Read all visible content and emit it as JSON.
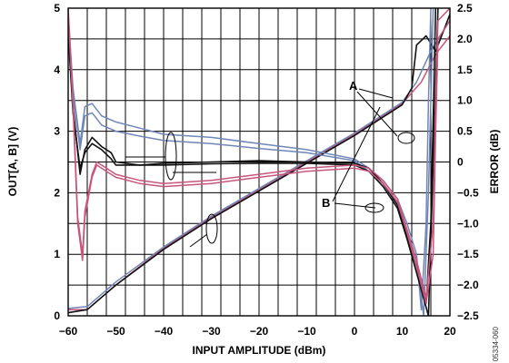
{
  "chart_data": {
    "type": "line",
    "xlabel": "INPUT AMPLITUDE (dBm)",
    "ylabel": "OUT[A, B] (V)",
    "y2label": "ERROR (dB)",
    "xlim": [
      -60,
      20
    ],
    "ylim": [
      0,
      5
    ],
    "y2lim": [
      -2.5,
      2.5
    ],
    "x_ticks": [
      "−60",
      "−50",
      "−40",
      "−30",
      "−20",
      "−10",
      "0",
      "10",
      "20"
    ],
    "y_ticks": [
      "0",
      "1",
      "2",
      "3",
      "4",
      "5"
    ],
    "y2_ticks": [
      "−2.5",
      "−2.0",
      "−1.5",
      "−1.0",
      "−0.5",
      "0",
      "0.5",
      "1.0",
      "1.5",
      "2.0",
      "2.5"
    ],
    "grid": true,
    "annotations": [
      "A",
      "B"
    ],
    "figure_code": "05334-060",
    "colors": {
      "black": "#111111",
      "blue": "#6f86b8",
      "pink": "#c8557d"
    },
    "series": [
      {
        "color": "pink",
        "axis": "left",
        "points": [
          [
            -60,
            0.1
          ],
          [
            -56,
            0.1
          ],
          [
            -50,
            0.5
          ],
          [
            -40,
            1.1
          ],
          [
            -30,
            1.6
          ],
          [
            -20,
            2.05
          ],
          [
            -10,
            2.5
          ],
          [
            0,
            2.95
          ],
          [
            10,
            3.45
          ],
          [
            14,
            3.8
          ],
          [
            17,
            4.25
          ],
          [
            20,
            4.55
          ]
        ]
      },
      {
        "color": "blue",
        "axis": "left",
        "points": [
          [
            -60,
            0.12
          ],
          [
            -56,
            0.15
          ],
          [
            -50,
            0.55
          ],
          [
            -40,
            1.12
          ],
          [
            -30,
            1.62
          ],
          [
            -20,
            2.07
          ],
          [
            -10,
            2.52
          ],
          [
            0,
            2.97
          ],
          [
            10,
            3.47
          ],
          [
            13,
            3.8
          ],
          [
            16,
            4.3
          ],
          [
            20,
            4.8
          ]
        ]
      },
      {
        "color": "black",
        "axis": "left",
        "points": [
          [
            -60,
            0.05
          ],
          [
            -56,
            0.1
          ],
          [
            -50,
            0.5
          ],
          [
            -40,
            1.08
          ],
          [
            -30,
            1.58
          ],
          [
            -20,
            2.03
          ],
          [
            -10,
            2.48
          ],
          [
            0,
            2.93
          ],
          [
            10,
            3.43
          ],
          [
            12,
            3.7
          ],
          [
            13,
            4.4
          ],
          [
            15,
            4.55
          ],
          [
            17,
            4.3
          ],
          [
            20,
            4.9
          ]
        ]
      },
      {
        "color": "blue",
        "axis": "right",
        "points": [
          [
            -60,
            2.4
          ],
          [
            -59,
            1.2
          ],
          [
            -57.5,
            0.3
          ],
          [
            -56.5,
            0.9
          ],
          [
            -55,
            0.95
          ],
          [
            -53,
            0.75
          ],
          [
            -50,
            0.65
          ],
          [
            -45,
            0.55
          ],
          [
            -40,
            0.45
          ],
          [
            -30,
            0.4
          ],
          [
            -20,
            0.3
          ],
          [
            -10,
            0.2
          ],
          [
            0,
            0.05
          ],
          [
            3,
            -0.1
          ],
          [
            6,
            -0.3
          ],
          [
            9,
            -0.6
          ],
          [
            11,
            -1.0
          ],
          [
            13,
            -1.5
          ],
          [
            14,
            -2.4
          ],
          [
            15,
            -1.0
          ],
          [
            15.5,
            1.0
          ],
          [
            16,
            2.5
          ]
        ]
      },
      {
        "color": "blue",
        "axis": "right",
        "points": [
          [
            -60,
            2.3
          ],
          [
            -59,
            1.1
          ],
          [
            -57.5,
            0.2
          ],
          [
            -56.5,
            0.75
          ],
          [
            -55,
            0.8
          ],
          [
            -53,
            0.6
          ],
          [
            -50,
            0.5
          ],
          [
            -45,
            0.42
          ],
          [
            -40,
            0.35
          ],
          [
            -30,
            0.3
          ],
          [
            -20,
            0.22
          ],
          [
            -10,
            0.15
          ],
          [
            0,
            0.02
          ],
          [
            3,
            -0.15
          ],
          [
            6,
            -0.35
          ],
          [
            9,
            -0.65
          ],
          [
            11,
            -1.1
          ],
          [
            13,
            -1.6
          ],
          [
            14.5,
            -2.5
          ],
          [
            15.5,
            -0.5
          ],
          [
            16.5,
            2.5
          ]
        ]
      },
      {
        "color": "black",
        "axis": "right",
        "points": [
          [
            -60,
            2.2
          ],
          [
            -59,
            0.9
          ],
          [
            -57.5,
            -0.2
          ],
          [
            -56.5,
            0.2
          ],
          [
            -55,
            0.4
          ],
          [
            -53,
            0.25
          ],
          [
            -51,
            0.15
          ],
          [
            -50,
            0.0
          ],
          [
            -45,
            -0.05
          ],
          [
            -40,
            -0.02
          ],
          [
            -30,
            0.0
          ],
          [
            -20,
            0.02
          ],
          [
            -10,
            0.0
          ],
          [
            0,
            -0.02
          ],
          [
            3,
            -0.1
          ],
          [
            6,
            -0.35
          ],
          [
            9,
            -0.7
          ],
          [
            11,
            -1.2
          ],
          [
            13,
            -1.7
          ],
          [
            15,
            -2.3
          ],
          [
            16,
            -1.0
          ],
          [
            17,
            2.5
          ]
        ]
      },
      {
        "color": "black",
        "axis": "right",
        "points": [
          [
            -60,
            2.1
          ],
          [
            -59,
            0.8
          ],
          [
            -57.5,
            -0.1
          ],
          [
            -56.5,
            0.15
          ],
          [
            -55,
            0.3
          ],
          [
            -53,
            0.2
          ],
          [
            -51,
            0.05
          ],
          [
            -50,
            -0.05
          ],
          [
            -45,
            -0.05
          ],
          [
            -40,
            -0.05
          ],
          [
            -30,
            -0.03
          ],
          [
            -20,
            -0.02
          ],
          [
            -10,
            -0.02
          ],
          [
            0,
            -0.05
          ],
          [
            3,
            -0.15
          ],
          [
            6,
            -0.4
          ],
          [
            9,
            -0.75
          ],
          [
            11,
            -1.25
          ],
          [
            13,
            -1.8
          ],
          [
            15.5,
            -2.5
          ],
          [
            16.5,
            0.0
          ],
          [
            17.5,
            2.5
          ]
        ]
      },
      {
        "color": "pink",
        "axis": "right",
        "points": [
          [
            -60,
            2.5
          ],
          [
            -59,
            1.0
          ],
          [
            -58,
            -0.9
          ],
          [
            -57,
            -1.5
          ],
          [
            -56.5,
            -0.8
          ],
          [
            -55,
            -0.2
          ],
          [
            -54,
            0.0
          ],
          [
            -52,
            -0.1
          ],
          [
            -50,
            -0.2
          ],
          [
            -45,
            -0.3
          ],
          [
            -40,
            -0.35
          ],
          [
            -30,
            -0.3
          ],
          [
            -20,
            -0.2
          ],
          [
            -10,
            -0.1
          ],
          [
            0,
            -0.05
          ],
          [
            3,
            -0.1
          ],
          [
            6,
            -0.3
          ],
          [
            9,
            -0.6
          ],
          [
            11,
            -1.1
          ],
          [
            13,
            -1.6
          ],
          [
            15,
            -2.2
          ],
          [
            16.5,
            -1.0
          ],
          [
            17,
            1.0
          ],
          [
            17.5,
            2.3
          ],
          [
            20,
            2.5
          ]
        ]
      },
      {
        "color": "pink",
        "axis": "right",
        "points": [
          [
            -60,
            2.4
          ],
          [
            -59,
            0.9
          ],
          [
            -58,
            -1.0
          ],
          [
            -57,
            -1.6
          ],
          [
            -56.5,
            -0.9
          ],
          [
            -55,
            -0.25
          ],
          [
            -54,
            -0.05
          ],
          [
            -52,
            -0.15
          ],
          [
            -50,
            -0.25
          ],
          [
            -45,
            -0.35
          ],
          [
            -40,
            -0.4
          ],
          [
            -30,
            -0.35
          ],
          [
            -20,
            -0.25
          ],
          [
            -10,
            -0.15
          ],
          [
            0,
            -0.1
          ],
          [
            3,
            -0.15
          ],
          [
            6,
            -0.35
          ],
          [
            9,
            -0.65
          ],
          [
            11,
            -1.15
          ],
          [
            13,
            -1.7
          ],
          [
            15,
            -2.3
          ],
          [
            16.5,
            -1.5
          ],
          [
            17,
            0.5
          ],
          [
            17.5,
            2.0
          ],
          [
            20,
            2.3
          ]
        ]
      }
    ]
  }
}
